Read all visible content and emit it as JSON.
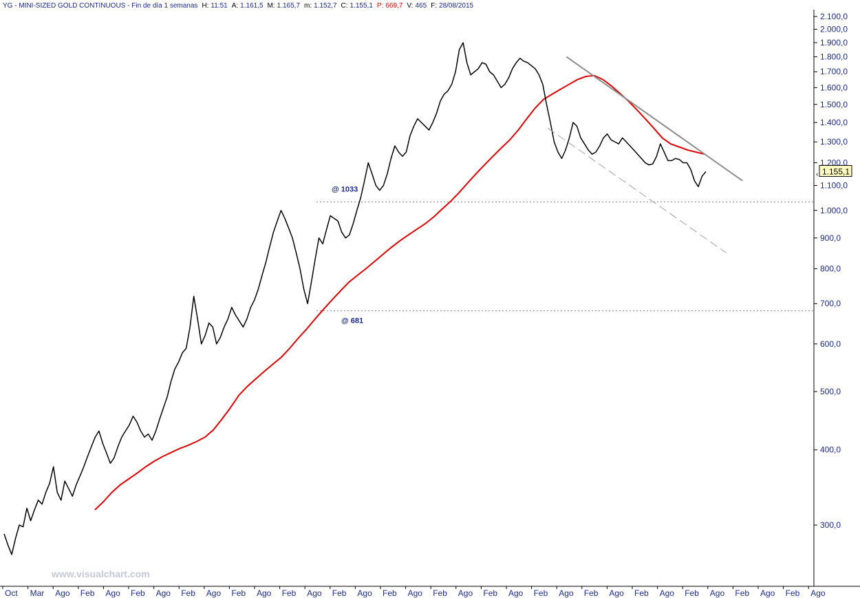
{
  "header": {
    "symbol": "YG",
    "title": "MINI-SIZED GOLD CONTINUOUS",
    "period": "Fin de día 1 semanas",
    "H_label": "H:",
    "H": "11:51",
    "A_label": "A:",
    "A": "1.161,5",
    "M_label": "M:",
    "M": "1.165,7",
    "m_label": "m:",
    "m": "1.152,7",
    "C_label": "C:",
    "C": "1.155,1",
    "P_label": "P:",
    "P": "669,7",
    "V_label": "V:",
    "V": "465",
    "F_label": "F:",
    "F": "28/08/2015"
  },
  "watermark": "www.visualchart.com",
  "colors": {
    "price": "#000000",
    "ma": "#e00000",
    "trend": "#8c8c8c",
    "axis_text": "#1a2a8a",
    "last_box": "#ffffc0"
  },
  "chart_data": {
    "type": "line",
    "scale": "log",
    "ylim": [
      240,
      2150
    ],
    "y_ticks": [
      300,
      400,
      500,
      600,
      700,
      800,
      900,
      1000,
      1100,
      1200,
      1300,
      1400,
      1500,
      1600,
      1700,
      1800,
      1900,
      2000,
      2100
    ],
    "y_tick_labels": [
      "300,0",
      "400,0",
      "500,0",
      "600,0",
      "700,0",
      "800,0",
      "900,0",
      "1.000,0",
      "1.100,0",
      "1.200,0",
      "1.300,0",
      "1.400,0",
      "1.500,0",
      "1.600,0",
      "1.700,0",
      "1.800,0",
      "1.900,0",
      "2.000,0",
      "2.100,0"
    ],
    "x_tick_labels": [
      "Oct",
      "Mar",
      "Ago",
      "Feb",
      "Ago",
      "Feb",
      "Ago",
      "Feb",
      "Ago",
      "Feb",
      "Ago",
      "Feb",
      "Ago",
      "Feb",
      "Ago",
      "Feb",
      "Ago",
      "Feb",
      "Ago",
      "Feb",
      "Ago",
      "Feb",
      "Ago",
      "Feb",
      "Ago",
      "Feb",
      "Ago",
      "Feb",
      "Ago",
      "Feb",
      "Ago",
      "Feb",
      "Ago"
    ],
    "last_value": "1.155,1",
    "series": [
      {
        "role": "price",
        "values": [
          290,
          278,
          268,
          285,
          300,
          298,
          320,
          305,
          318,
          330,
          325,
          340,
          352,
          375,
          340,
          330,
          355,
          345,
          335,
          350,
          362,
          375,
          390,
          405,
          420,
          430,
          410,
          395,
          380,
          388,
          405,
          420,
          430,
          440,
          455,
          445,
          430,
          420,
          425,
          415,
          430,
          450,
          470,
          490,
          520,
          545,
          560,
          580,
          590,
          640,
          720,
          660,
          600,
          620,
          650,
          640,
          600,
          615,
          640,
          660,
          690,
          670,
          655,
          640,
          660,
          690,
          710,
          740,
          780,
          820,
          870,
          920,
          960,
          1000,
          970,
          935,
          900,
          850,
          800,
          740,
          700,
          760,
          830,
          900,
          880,
          930,
          980,
          970,
          960,
          920,
          900,
          910,
          950,
          1000,
          1050,
          1120,
          1200,
          1150,
          1100,
          1080,
          1100,
          1150,
          1220,
          1280,
          1250,
          1230,
          1250,
          1330,
          1380,
          1420,
          1400,
          1380,
          1360,
          1400,
          1450,
          1520,
          1560,
          1580,
          1620,
          1700,
          1850,
          1900,
          1760,
          1680,
          1700,
          1720,
          1760,
          1750,
          1700,
          1680,
          1640,
          1600,
          1620,
          1660,
          1720,
          1760,
          1790,
          1770,
          1760,
          1740,
          1720,
          1680,
          1620,
          1500,
          1400,
          1300,
          1250,
          1220,
          1260,
          1320,
          1400,
          1380,
          1320,
          1290,
          1260,
          1240,
          1250,
          1280,
          1320,
          1340,
          1310,
          1300,
          1290,
          1320,
          1300,
          1280,
          1260,
          1240,
          1220,
          1200,
          1190,
          1195,
          1230,
          1290,
          1250,
          1210,
          1210,
          1220,
          1215,
          1200,
          1200,
          1170,
          1120,
          1095,
          1140,
          1160
        ]
      },
      {
        "role": "moving-average",
        "values": [
          318,
          328,
          340,
          350,
          358,
          366,
          375,
          383,
          390,
          396,
          402,
          407,
          413,
          420,
          432,
          450,
          470,
          493,
          510,
          525,
          540,
          555,
          570,
          590,
          613,
          635,
          660,
          685,
          710,
          735,
          760,
          780,
          800,
          822,
          845,
          868,
          890,
          910,
          930,
          950,
          975,
          1005,
          1035,
          1070,
          1110,
          1150,
          1190,
          1230,
          1270,
          1310,
          1360,
          1420,
          1480,
          1530,
          1560,
          1590,
          1620,
          1650,
          1670,
          1675,
          1650,
          1610,
          1565,
          1520,
          1470,
          1420,
          1370,
          1320,
          1290,
          1275,
          1260,
          1250,
          1240
        ]
      },
      {
        "role": "trendline-upper",
        "x": [
          0.695,
          0.912
        ],
        "values": [
          1800,
          1120
        ]
      },
      {
        "role": "trendline-lower",
        "x": [
          0.672,
          0.892
        ],
        "values": [
          1370,
          850
        ]
      }
    ],
    "annotations": [
      {
        "label": "@ 1033",
        "value": 1033
      },
      {
        "label": "@ 681",
        "value": 681
      }
    ]
  }
}
